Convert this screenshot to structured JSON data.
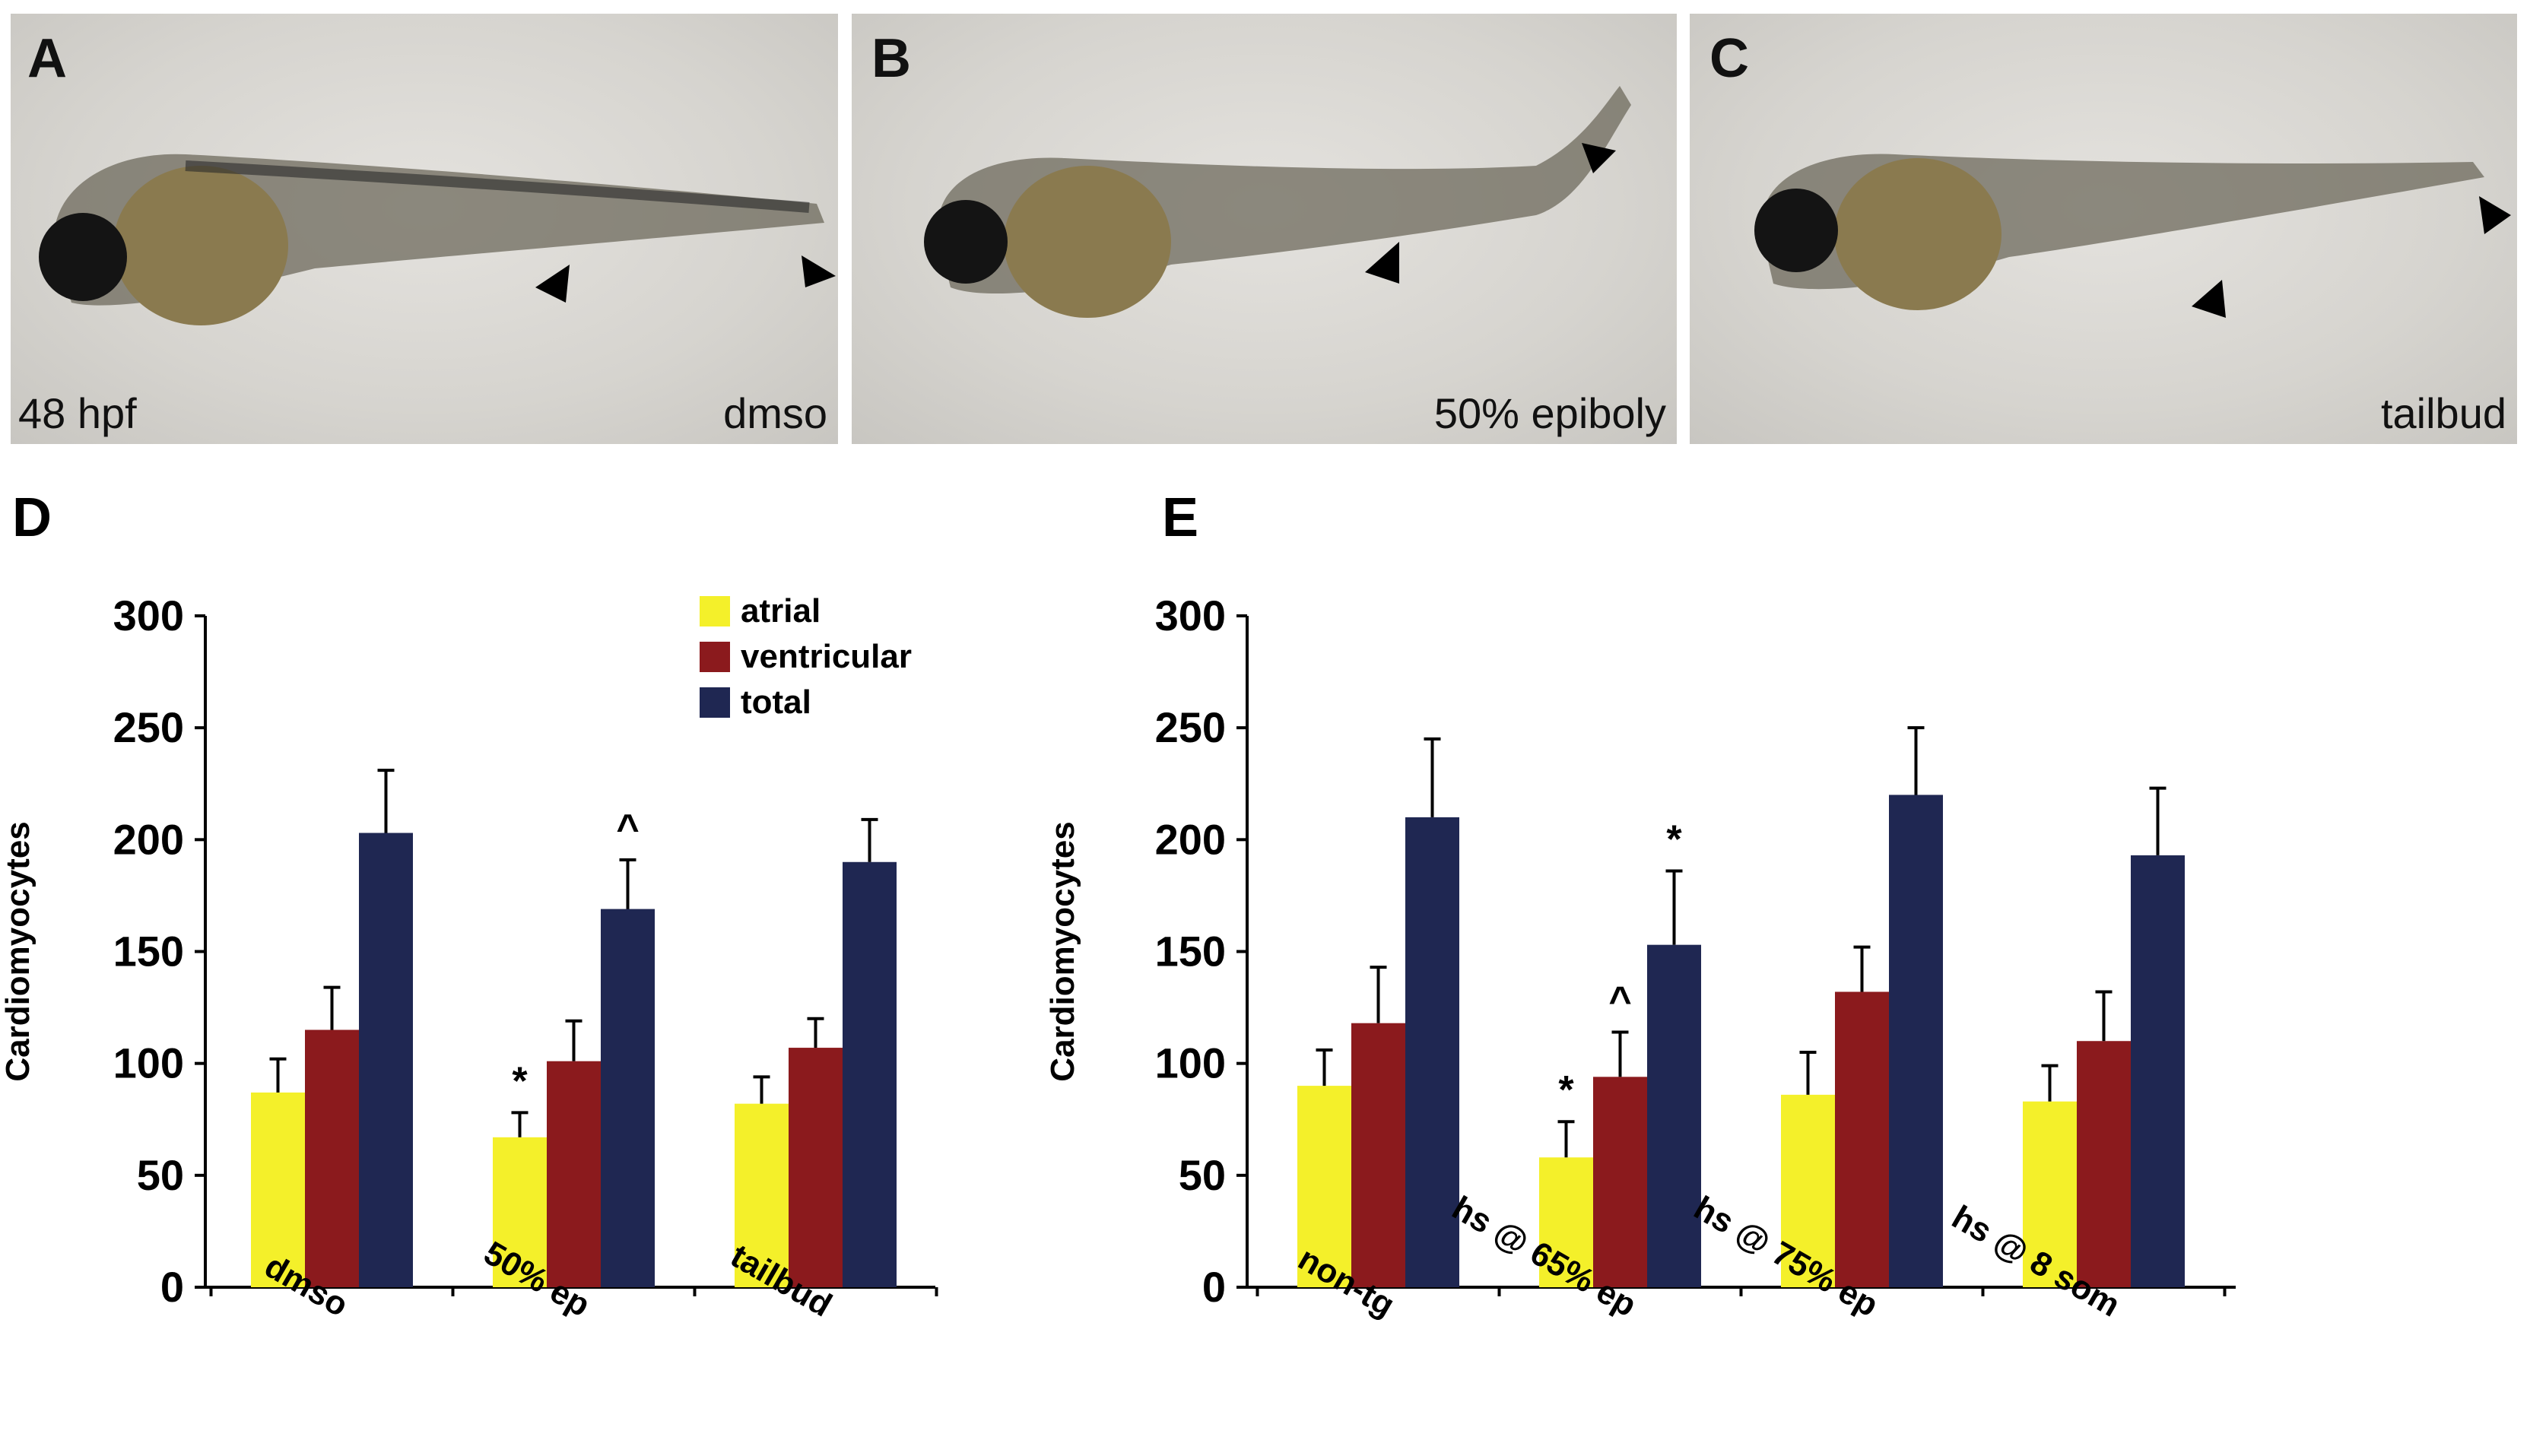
{
  "panels": {
    "A": {
      "letter": "A",
      "label_left": "48 hpf",
      "label_right": "dmso"
    },
    "B": {
      "letter": "B",
      "label_right": "50% epiboly"
    },
    "C": {
      "letter": "C",
      "label_right": "tailbud"
    }
  },
  "colors": {
    "atrial": "#f4f02a",
    "ventricular": "#8b1a1d",
    "total": "#1f2752"
  },
  "chart_data": [
    {
      "letter": "D",
      "type": "bar",
      "ylabel": "Cardiomyocytes",
      "ylim": [
        0,
        300
      ],
      "yticks": [
        "0",
        "50",
        "100",
        "150",
        "200",
        "250",
        "300"
      ],
      "categories": [
        "dmso",
        "50% ep",
        "tailbud"
      ],
      "legend": [
        "atrial",
        "ventricular",
        "total"
      ],
      "series": [
        {
          "name": "atrial",
          "values": [
            87,
            67,
            82
          ],
          "errors": [
            15,
            11,
            12
          ]
        },
        {
          "name": "ventricular",
          "values": [
            115,
            101,
            107
          ],
          "errors": [
            19,
            18,
            13
          ]
        },
        {
          "name": "total",
          "values": [
            203,
            169,
            190
          ],
          "errors": [
            28,
            22,
            19
          ]
        }
      ],
      "annotations": [
        {
          "category": 1,
          "series": 0,
          "text": "*"
        },
        {
          "category": 1,
          "series": 2,
          "text": "^"
        }
      ]
    },
    {
      "letter": "E",
      "type": "bar",
      "ylabel": "Cardiomyocytes",
      "ylim": [
        0,
        300
      ],
      "yticks": [
        "0",
        "50",
        "100",
        "150",
        "200",
        "250",
        "300"
      ],
      "categories": [
        "non-tg",
        "hs @ 65% ep",
        "hs @ 75% ep",
        "hs @ 8 som"
      ],
      "series": [
        {
          "name": "atrial",
          "values": [
            90,
            58,
            86,
            83
          ],
          "errors": [
            16,
            16,
            19,
            16
          ]
        },
        {
          "name": "ventricular",
          "values": [
            118,
            94,
            132,
            110
          ],
          "errors": [
            25,
            20,
            20,
            22
          ]
        },
        {
          "name": "total",
          "values": [
            210,
            153,
            220,
            193
          ],
          "errors": [
            35,
            33,
            30,
            30
          ]
        }
      ],
      "annotations": [
        {
          "category": 1,
          "series": 0,
          "text": "*"
        },
        {
          "category": 1,
          "series": 1,
          "text": "^"
        },
        {
          "category": 1,
          "series": 2,
          "text": "*"
        }
      ]
    }
  ]
}
